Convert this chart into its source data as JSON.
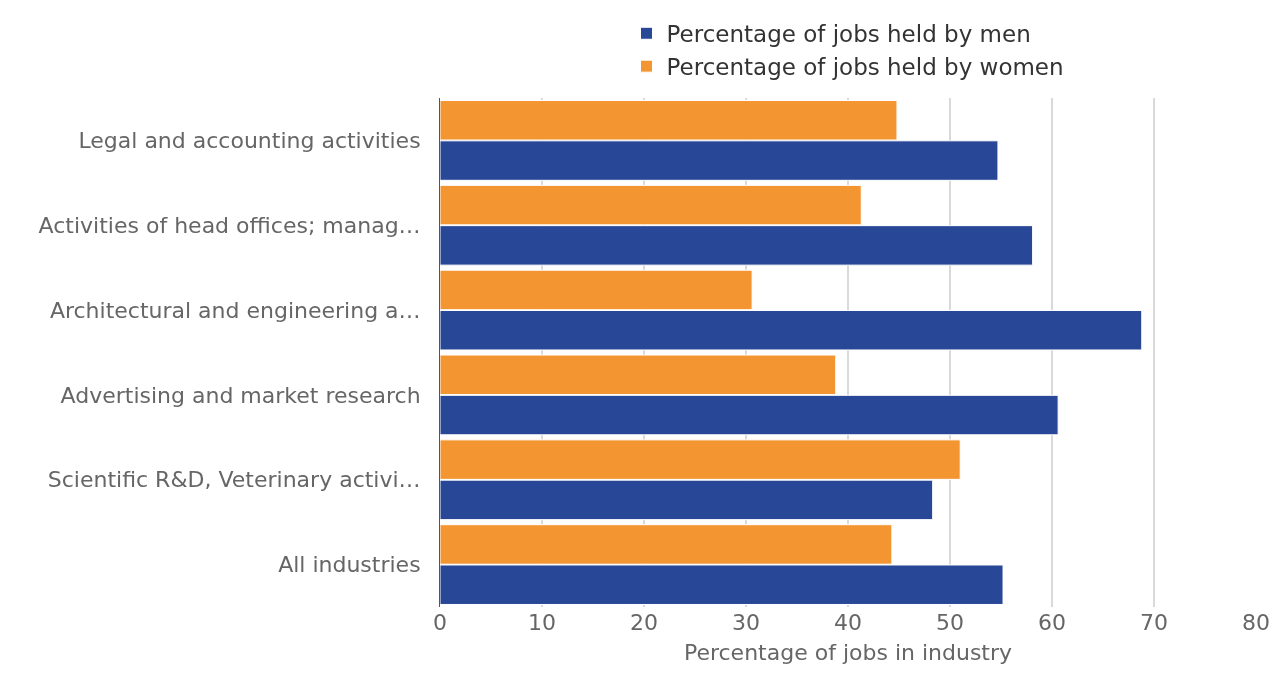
{
  "chart_data": {
    "type": "bar",
    "orientation": "horizontal",
    "xlabel": "Percentage of jobs in industry",
    "categories": [
      "Legal and accounting activities",
      "Activities of head offices; manag…",
      "Architectural and engineering a…",
      "Advertising and market research",
      "Scientific R&D, Veterinary activi…",
      "All industries"
    ],
    "series": [
      {
        "name": "Percentage of jobs held by men",
        "color": "#284897",
        "values": [
          54.7,
          58.1,
          68.8,
          60.6,
          48.3,
          55.2
        ]
      },
      {
        "name": "Percentage of jobs held by women",
        "color": "#f39530",
        "values": [
          44.8,
          41.3,
          30.6,
          38.8,
          51.0,
          44.3
        ]
      }
    ],
    "xlim": [
      0,
      80
    ],
    "xticks": [
      0,
      10,
      20,
      30,
      40,
      50,
      60,
      70,
      80
    ],
    "grid": "x",
    "legend": "top"
  }
}
